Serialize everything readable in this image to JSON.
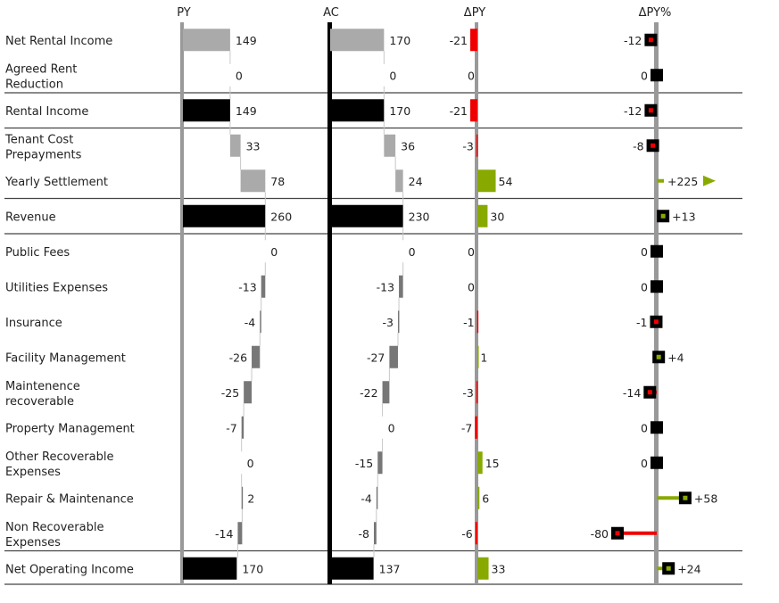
{
  "chart_data": {
    "type": "bar",
    "orientation": "horizontal-waterfall",
    "headers": {
      "py": "PY",
      "ac": "AC",
      "dpy": "ΔPY",
      "dpy_pct": "ΔPY%"
    },
    "rows": [
      {
        "label": [
          "Net Rental Income"
        ],
        "kind": "total",
        "line_before": false,
        "py": 149,
        "py_label": "149",
        "ac": 170,
        "ac_label": "170",
        "dpy": -21,
        "dpy_label": "-21",
        "pct": -12,
        "pct_label": "-12"
      },
      {
        "label": [
          "Agreed Rent",
          "Reduction"
        ],
        "kind": "delta",
        "line_before": false,
        "py": 0,
        "py_label": "0",
        "ac": 0,
        "ac_label": "0",
        "dpy": 0,
        "dpy_label": "0",
        "pct": 0,
        "pct_label": "0"
      },
      {
        "label": [
          "Rental Income"
        ],
        "kind": "total",
        "line_before": true,
        "py": 149,
        "py_label": "149",
        "ac": 170,
        "ac_label": "170",
        "dpy": -21,
        "dpy_label": "-21",
        "pct": -12,
        "pct_label": "-12"
      },
      {
        "label": [
          "Tenant Cost",
          "Prepayments"
        ],
        "kind": "delta",
        "line_before": true,
        "py": 33,
        "py_label": "33",
        "ac": 36,
        "ac_label": "36",
        "dpy": -3,
        "dpy_label": "-3",
        "pct": -8,
        "pct_label": "-8"
      },
      {
        "label": [
          "Yearly Settlement"
        ],
        "kind": "delta",
        "line_before": false,
        "py": 78,
        "py_label": "78",
        "ac": 24,
        "ac_label": "24",
        "dpy": 54,
        "dpy_label": "54",
        "pct": 225,
        "pct_label": "+225",
        "pct_overflow": true
      },
      {
        "label": [
          "Revenue"
        ],
        "kind": "total",
        "line_before": true,
        "py": 260,
        "py_label": "260",
        "ac": 230,
        "ac_label": "230",
        "dpy": 30,
        "dpy_label": "30",
        "pct": 13,
        "pct_label": "+13"
      },
      {
        "label": [
          "Public Fees"
        ],
        "kind": "delta",
        "line_before": true,
        "py": 0,
        "py_label": "0",
        "ac": 0,
        "ac_label": "0",
        "dpy": 0,
        "dpy_label": "0",
        "pct": 0,
        "pct_label": "0"
      },
      {
        "label": [
          "Utilities Expenses"
        ],
        "kind": "delta",
        "line_before": false,
        "py": -13,
        "py_label": "-13",
        "ac": -13,
        "ac_label": "-13",
        "dpy": 0,
        "dpy_label": "0",
        "pct": 0,
        "pct_label": "0"
      },
      {
        "label": [
          "Insurance"
        ],
        "kind": "delta",
        "line_before": false,
        "py": -4,
        "py_label": "-4",
        "ac": -3,
        "ac_label": "-3",
        "dpy": -1,
        "dpy_label": "-1",
        "pct": -1,
        "pct_label": "-1"
      },
      {
        "label": [
          "Facility Management"
        ],
        "kind": "delta",
        "line_before": false,
        "py": -26,
        "py_label": "-26",
        "ac": -27,
        "ac_label": "-27",
        "dpy": 1,
        "dpy_label": "1",
        "pct": 4,
        "pct_label": "+4"
      },
      {
        "label": [
          "Maintenence",
          "recoverable"
        ],
        "kind": "delta",
        "line_before": false,
        "py": -25,
        "py_label": "-25",
        "ac": -22,
        "ac_label": "-22",
        "dpy": -3,
        "dpy_label": "-3",
        "pct": -14,
        "pct_label": "-14"
      },
      {
        "label": [
          "Property Management"
        ],
        "kind": "delta",
        "line_before": false,
        "py": -7,
        "py_label": "-7",
        "ac": 0,
        "ac_label": "0",
        "dpy": -7,
        "dpy_label": "-7",
        "pct": 0,
        "pct_label": "0"
      },
      {
        "label": [
          "Other Recoverable",
          "Expenses"
        ],
        "kind": "delta",
        "line_before": false,
        "py": 0,
        "py_label": "0",
        "ac": -15,
        "ac_label": "-15",
        "dpy": 15,
        "dpy_label": "15",
        "pct": 0,
        "pct_label": "0"
      },
      {
        "label": [
          "Repair & Maintenance"
        ],
        "kind": "delta",
        "line_before": false,
        "py": 2,
        "py_label": "2",
        "ac": -4,
        "ac_label": "-4",
        "dpy": 6,
        "dpy_label": "6",
        "pct": 58,
        "pct_label": "+58"
      },
      {
        "label": [
          "Non Recoverable",
          "Expenses"
        ],
        "kind": "delta",
        "line_before": false,
        "py": -14,
        "py_label": "-14",
        "ac": -8,
        "ac_label": "-8",
        "dpy": -6,
        "dpy_label": "-6",
        "pct": -80,
        "pct_label": "-80"
      },
      {
        "label": [
          "Net Operating Income"
        ],
        "kind": "total",
        "line_before": true,
        "py": 170,
        "py_label": "170",
        "ac": 137,
        "ac_label": "137",
        "dpy": 33,
        "dpy_label": "33",
        "pct": 24,
        "pct_label": "+24"
      }
    ],
    "colors": {
      "py_total": "#000000",
      "ac_total": "#000000",
      "py_top": "#aaaaaa",
      "ac_top": "#aaaaaa",
      "delta": "#777777",
      "prepay": "#aaaaaa",
      "positive": "#88aa00",
      "negative": "#ee0000",
      "axis": "#999999",
      "ac_axis": "#000000",
      "separator": "#444444"
    }
  }
}
